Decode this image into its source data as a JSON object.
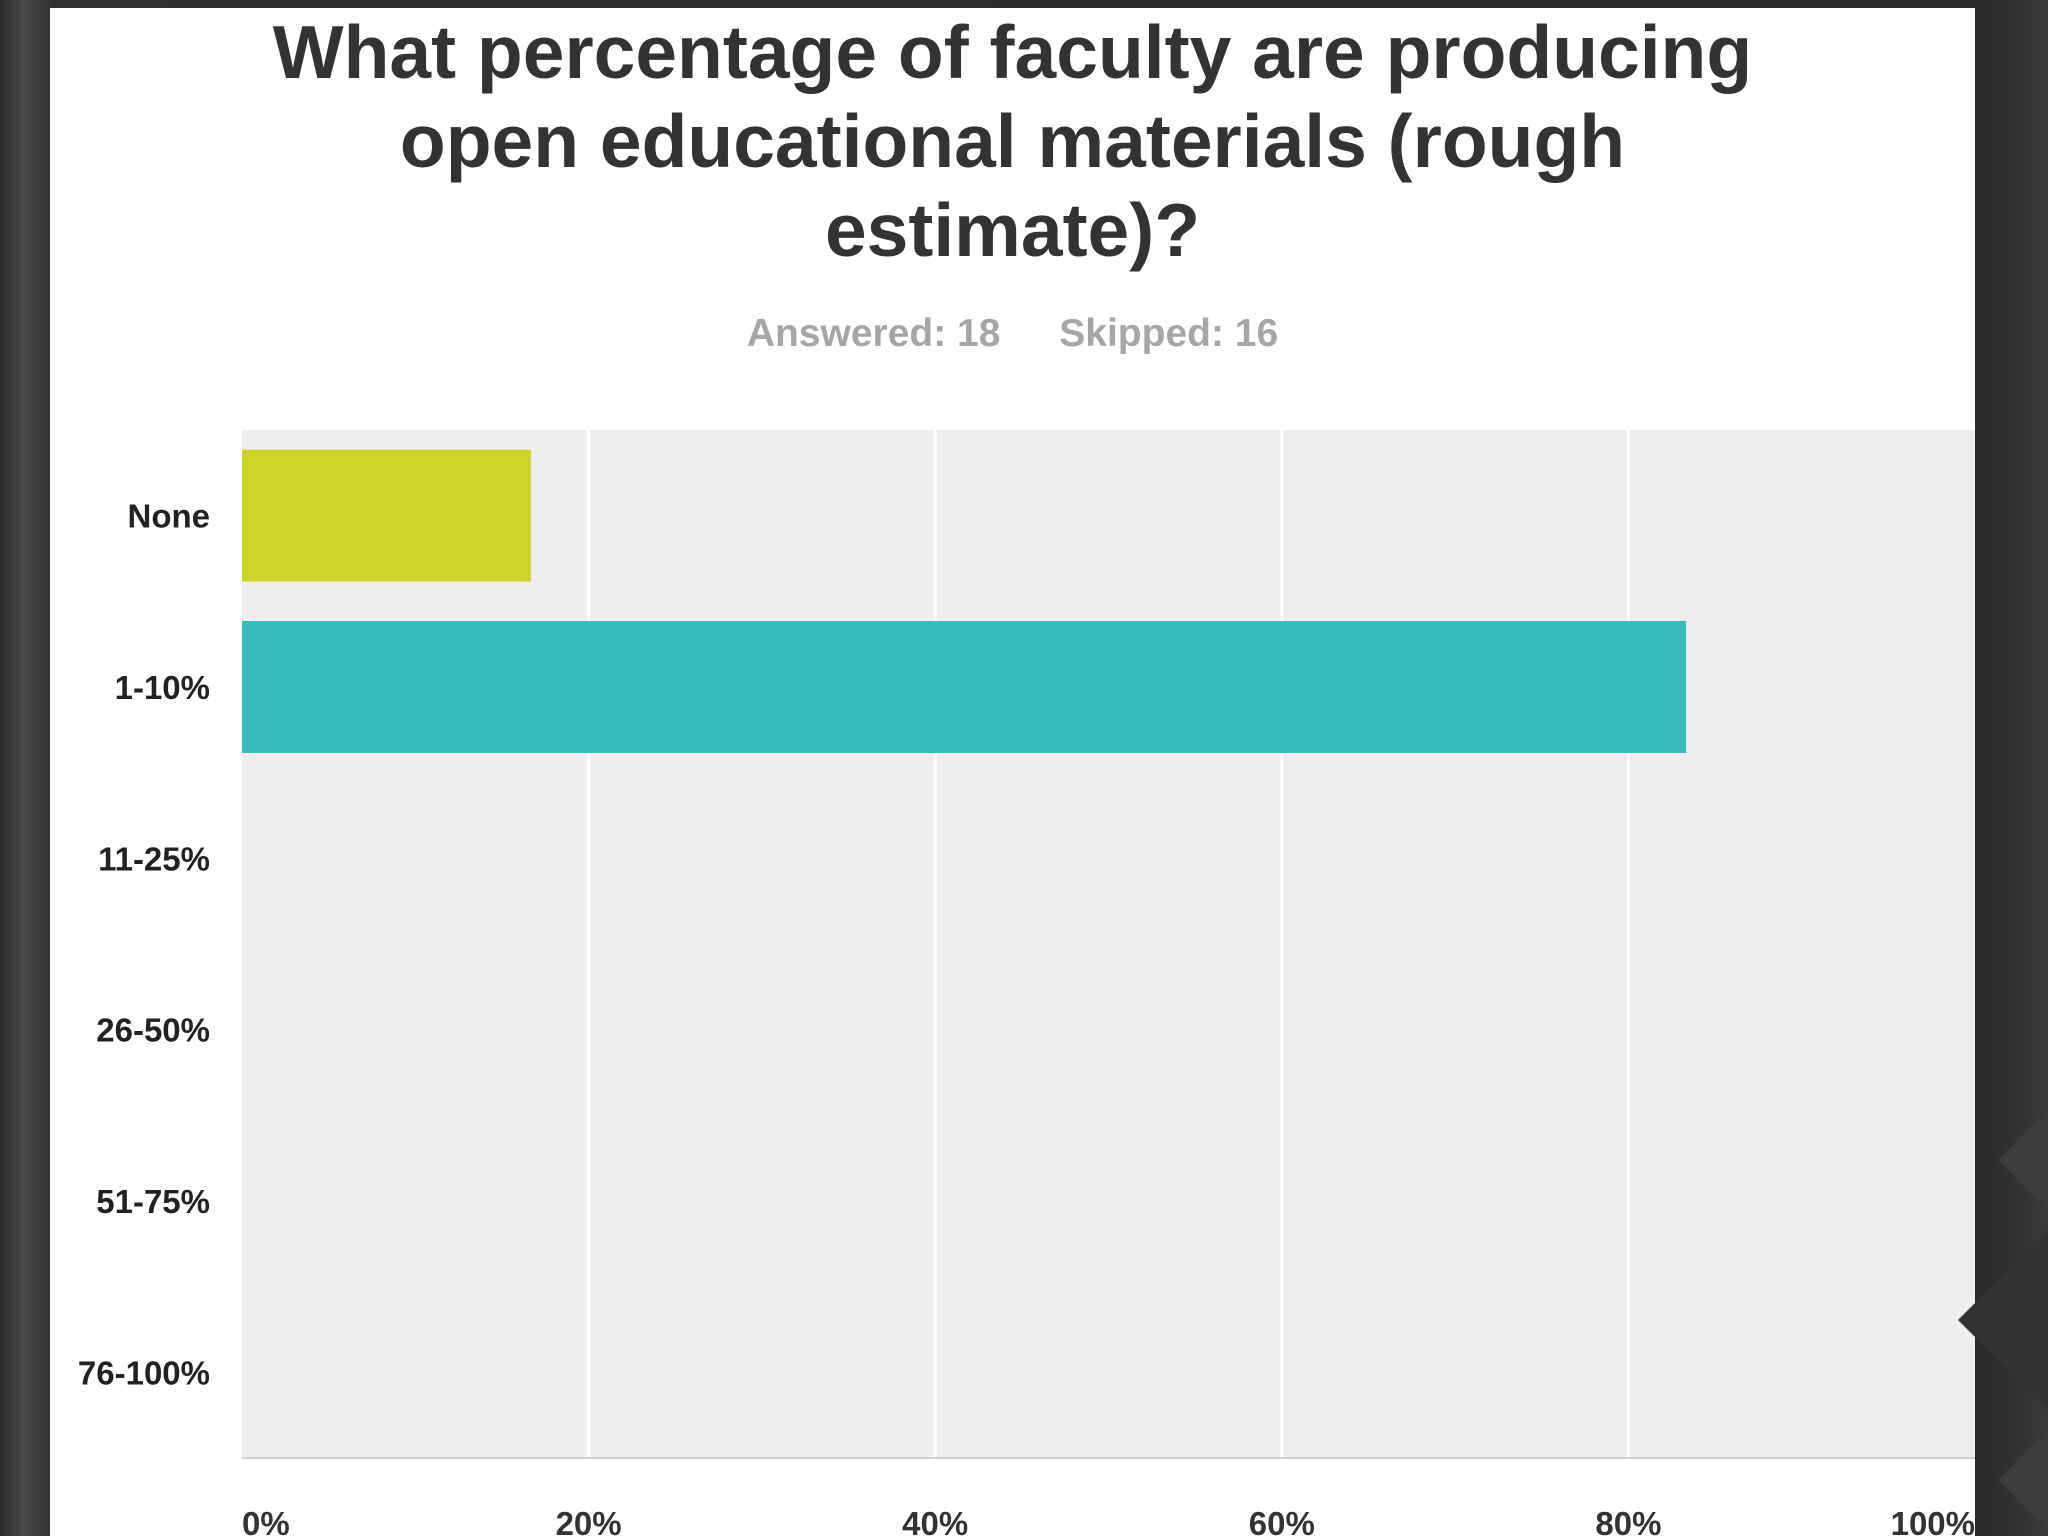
{
  "title_lines": [
    "What percentage of faculty are producing",
    "open educational materials (rough",
    "estimate)?"
  ],
  "answered_text": "Answered: 18",
  "skipped_text": "Skipped: 16",
  "colors": {
    "plot_bg": "#efeeef",
    "gridline": "#ffffff",
    "bar_none": "#cdd32a",
    "bar_1_10": "#37bbbd",
    "label": "#333333"
  },
  "chart_data": {
    "type": "bar",
    "orientation": "horizontal",
    "categories": [
      "None",
      "1-10%",
      "11-25%",
      "26-50%",
      "51-75%",
      "76-100%"
    ],
    "values": [
      16.67,
      83.33,
      0,
      0,
      0,
      0
    ],
    "x_ticks": [
      "0%",
      "20%",
      "40%",
      "60%",
      "80%",
      "100%"
    ],
    "xlim": [
      0,
      100
    ],
    "grid": true,
    "title": "What percentage of faculty are producing open educational materials (rough estimate)?",
    "subtitle": "Answered: 18 Skipped: 16"
  }
}
